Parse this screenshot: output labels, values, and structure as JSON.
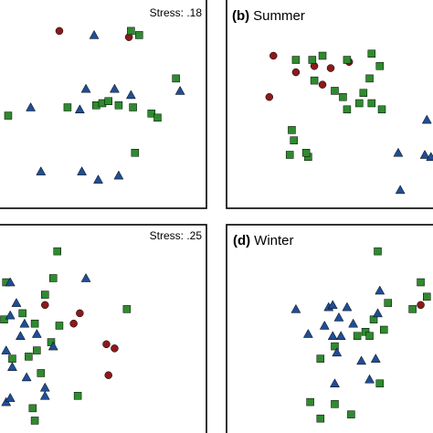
{
  "colors": {
    "circle": "#8b1a1a",
    "square": "#2e8b2e",
    "triangle": "#1f4e96",
    "edge": "#000000"
  },
  "chart_data": [
    {
      "type": "scatter",
      "title": "",
      "stress": "Stress: .18",
      "xlim": [
        0,
        100
      ],
      "ylim": [
        0,
        100
      ],
      "series": [
        {
          "marker": "circle",
          "points": [
            [
              29,
              85
            ],
            [
              63,
              82
            ]
          ]
        },
        {
          "marker": "square",
          "points": [
            [
              64,
              85
            ],
            [
              68,
              83
            ],
            [
              86,
              62
            ],
            [
              4,
              44
            ],
            [
              33,
              48
            ],
            [
              47,
              49
            ],
            [
              50,
              50
            ],
            [
              53,
              51
            ],
            [
              58,
              49
            ],
            [
              65,
              48
            ],
            [
              74,
              45
            ],
            [
              77,
              43
            ],
            [
              66,
              26
            ]
          ]
        },
        {
          "marker": "triangle",
          "points": [
            [
              46,
              83
            ],
            [
              15,
              48
            ],
            [
              39,
              47
            ],
            [
              42,
              57
            ],
            [
              56,
              57
            ],
            [
              64,
              54
            ],
            [
              88,
              56
            ],
            [
              20,
              17
            ],
            [
              40,
              17
            ],
            [
              48,
              13
            ],
            [
              58,
              15
            ]
          ]
        }
      ]
    },
    {
      "type": "scatter",
      "title": "Summer",
      "letter": "(b)",
      "xlim": [
        0,
        100
      ],
      "ylim": [
        0,
        100
      ],
      "series": [
        {
          "marker": "circle",
          "points": [
            [
              22,
              73
            ],
            [
              33,
              65
            ],
            [
              42,
              68
            ],
            [
              50,
              67
            ],
            [
              59,
              70
            ],
            [
              20,
              53
            ],
            [
              46,
              59
            ]
          ]
        },
        {
          "marker": "square",
          "points": [
            [
              33,
              71
            ],
            [
              41,
              71
            ],
            [
              46,
              73
            ],
            [
              58,
              71
            ],
            [
              70,
              74
            ],
            [
              74,
              68
            ],
            [
              69,
              62
            ],
            [
              42,
              61
            ],
            [
              52,
              56
            ],
            [
              56,
              53
            ],
            [
              58,
              47
            ],
            [
              64,
              50
            ],
            [
              66,
              55
            ],
            [
              70,
              50
            ],
            [
              75,
              47
            ],
            [
              31,
              37
            ],
            [
              32,
              32
            ],
            [
              30,
              25
            ],
            [
              39,
              24
            ],
            [
              38,
              26
            ]
          ]
        },
        {
          "marker": "triangle",
          "points": [
            [
              97,
              42
            ],
            [
              83,
              26
            ],
            [
              96,
              25
            ],
            [
              99,
              24
            ],
            [
              84,
              8
            ]
          ]
        }
      ]
    },
    {
      "type": "scatter",
      "title": "",
      "stress": "Stress: .25",
      "xlim": [
        0,
        100
      ],
      "ylim": [
        0,
        100
      ],
      "series": [
        {
          "marker": "circle",
          "points": [
            [
              22,
              62
            ],
            [
              39,
              58
            ],
            [
              36,
              53
            ],
            [
              52,
              43
            ],
            [
              56,
              41
            ],
            [
              53,
              28
            ]
          ]
        },
        {
          "marker": "square",
          "points": [
            [
              28,
              88
            ],
            [
              26,
              75
            ],
            [
              3,
              73
            ],
            [
              22,
              67
            ],
            [
              11,
              58
            ],
            [
              17,
              53
            ],
            [
              2,
              55
            ],
            [
              29,
              52
            ],
            [
              62,
              60
            ],
            [
              25,
              44
            ],
            [
              18,
              40
            ],
            [
              14,
              37
            ],
            [
              6,
              36
            ],
            [
              20,
              29
            ],
            [
              38,
              18
            ],
            [
              16,
              12
            ],
            [
              17,
              6
            ]
          ]
        },
        {
          "marker": "triangle",
          "points": [
            [
              5,
              73
            ],
            [
              42,
              75
            ],
            [
              8,
              63
            ],
            [
              5,
              57
            ],
            [
              12,
              53
            ],
            [
              18,
              48
            ],
            [
              10,
              47
            ],
            [
              3,
              40
            ],
            [
              26,
              42
            ],
            [
              6,
              32
            ],
            [
              13,
              27
            ],
            [
              3,
              15
            ],
            [
              5,
              17
            ],
            [
              22,
              18
            ],
            [
              22,
              22
            ]
          ]
        }
      ]
    },
    {
      "type": "scatter",
      "title": "Winter",
      "letter": "(d)",
      "xlim": [
        0,
        100
      ],
      "ylim": [
        0,
        100
      ],
      "series": [
        {
          "marker": "circle",
          "points": [
            [
              94,
              62
            ]
          ]
        },
        {
          "marker": "square",
          "points": [
            [
              73,
              88
            ],
            [
              94,
              73
            ],
            [
              97,
              66
            ],
            [
              78,
              63
            ],
            [
              90,
              60
            ],
            [
              71,
              55
            ],
            [
              76,
              50
            ],
            [
              67,
              49
            ],
            [
              63,
              47
            ],
            [
              69,
              47
            ],
            [
              52,
              42
            ],
            [
              45,
              36
            ],
            [
              52,
              14
            ],
            [
              40,
              15
            ],
            [
              74,
              24
            ],
            [
              60,
              9
            ],
            [
              45,
              7
            ]
          ]
        },
        {
          "marker": "triangle",
          "points": [
            [
              33,
              60
            ],
            [
              49,
              61
            ],
            [
              51,
              62
            ],
            [
              58,
              61
            ],
            [
              54,
              56
            ],
            [
              47,
              52
            ],
            [
              61,
              53
            ],
            [
              51,
              47
            ],
            [
              55,
              47
            ],
            [
              74,
              69
            ],
            [
              73,
              58
            ],
            [
              53,
              39
            ],
            [
              65,
              35
            ],
            [
              72,
              36
            ],
            [
              69,
              26
            ],
            [
              39,
              48
            ],
            [
              52,
              24
            ]
          ]
        }
      ]
    }
  ]
}
